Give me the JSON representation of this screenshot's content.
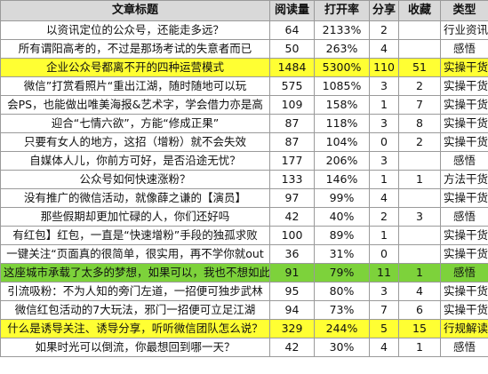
{
  "headers": [
    "文章标题",
    "阅读量",
    "打开率",
    "分享",
    "收藏",
    "类型"
  ],
  "rows": [
    {
      "title": "以资讯定位的公众号，还能走多远？",
      "reads": "64",
      "open_rate": "2133%",
      "shares": "2",
      "favorites": "",
      "type": "行业资讯",
      "highlight": ""
    },
    {
      "title": "所有谓阳高考的，不过是那场考试的失意者而已",
      "reads": "50",
      "open_rate": "263%",
      "shares": "4",
      "favorites": "",
      "type": "感悟",
      "highlight": ""
    },
    {
      "title": "企业公众号都离不开的四种运营模式",
      "reads": "1484",
      "open_rate": "5300%",
      "shares": "110",
      "favorites": "51",
      "type": "实操干货",
      "highlight": "yellow"
    },
    {
      "title": "微信”打赏看照片“重出江湖，随时随地可以玩",
      "reads": "575",
      "open_rate": "1085%",
      "shares": "3",
      "favorites": "2",
      "type": "实操干货",
      "highlight": ""
    },
    {
      "title": "会PS，也能做出唯美海报&艺术字，学会借力亦是高",
      "reads": "109",
      "open_rate": "158%",
      "shares": "1",
      "favorites": "7",
      "type": "实操干货",
      "highlight": ""
    },
    {
      "title": "迎合“七情六欲”，方能“修成正果”",
      "reads": "87",
      "open_rate": "118%",
      "shares": "3",
      "favorites": "8",
      "type": "实操干货",
      "highlight": ""
    },
    {
      "title": "只要有女人的地方，这招（增粉）就不会失效",
      "reads": "87",
      "open_rate": "104%",
      "shares": "0",
      "favorites": "2",
      "type": "实操干货",
      "highlight": ""
    },
    {
      "title": "自媒体人儿，你前方可好，是否沿途无忧？",
      "reads": "177",
      "open_rate": "206%",
      "shares": "3",
      "favorites": "",
      "type": "感悟",
      "highlight": ""
    },
    {
      "title": "公众号如何快速涨粉？",
      "reads": "133",
      "open_rate": "146%",
      "shares": "1",
      "favorites": "1",
      "type": "方法干货",
      "highlight": ""
    },
    {
      "title": "没有推广的微信活动，就像薛之谦的【演员】",
      "reads": "97",
      "open_rate": "99%",
      "shares": "4",
      "favorites": "",
      "type": "实操干货",
      "highlight": ""
    },
    {
      "title": "那些假期却更加忙碌的人，你们还好吗",
      "reads": "42",
      "open_rate": "40%",
      "shares": "2",
      "favorites": "3",
      "type": "感悟",
      "highlight": ""
    },
    {
      "title": "有红包】红包，一直是“快速增粉”手段的独孤求败",
      "reads": "100",
      "open_rate": "89%",
      "shares": "1",
      "favorites": "",
      "type": "实操干货",
      "highlight": ""
    },
    {
      "title": "一键关注“页面真的很简单，很实用，再不学你就out",
      "reads": "36",
      "open_rate": "31%",
      "shares": "0",
      "favorites": "",
      "type": "实操干货",
      "highlight": ""
    },
    {
      "title": "这座城市承载了太多的梦想，如果可以，我也不想如此努",
      "reads": "91",
      "open_rate": "79%",
      "shares": "11",
      "favorites": "1",
      "type": "感悟",
      "highlight": "green"
    },
    {
      "title": "引流吸粉：不为人知的旁门左道，一招便可独步武林",
      "reads": "95",
      "open_rate": "80%",
      "shares": "3",
      "favorites": "4",
      "type": "实操干货",
      "highlight": ""
    },
    {
      "title": "微信红包活动的7大玩法，邪门一招便可立足江湖",
      "reads": "94",
      "open_rate": "73%",
      "shares": "7",
      "favorites": "6",
      "type": "实操干货",
      "highlight": ""
    },
    {
      "title": "什么是诱导关注、诱导分享，听听微信团队怎么说？",
      "reads": "329",
      "open_rate": "244%",
      "shares": "5",
      "favorites": "15",
      "type": "行规解读",
      "highlight": "yellow"
    },
    {
      "title": "如果时光可以倒流，你最想回到哪一天？",
      "reads": "42",
      "open_rate": "30%",
      "shares": "4",
      "favorites": "1",
      "type": "感悟",
      "highlight": ""
    }
  ]
}
